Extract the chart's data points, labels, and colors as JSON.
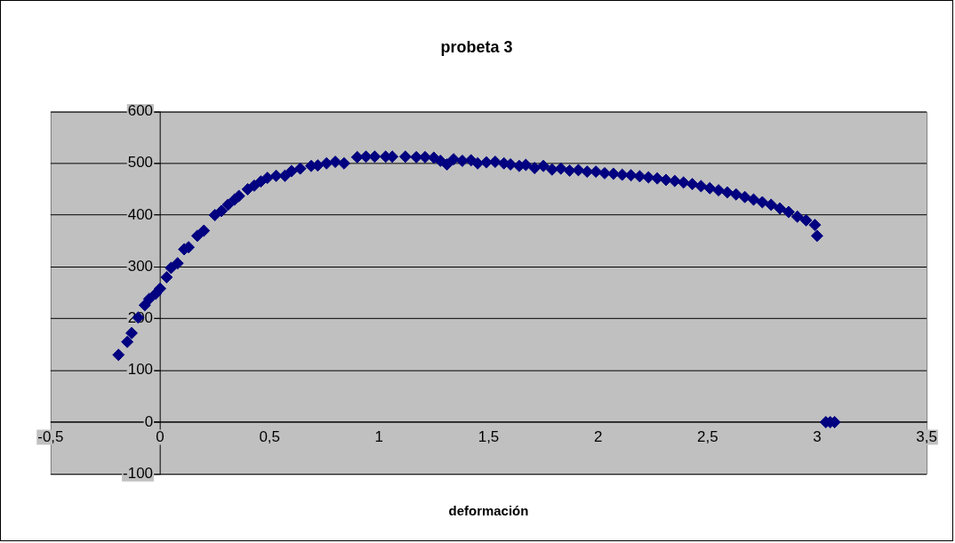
{
  "chart_data": {
    "type": "scatter",
    "title": "probeta 3",
    "xlabel": "deformación",
    "series": [
      {
        "color": "#000080",
        "x": [
          -0.19,
          -0.15,
          -0.13,
          -0.1,
          -0.07,
          -0.05,
          -0.02,
          0.0,
          0.03,
          0.05,
          0.08,
          0.11,
          0.13,
          0.17,
          0.2,
          0.25,
          0.28,
          0.31,
          0.34,
          0.36,
          0.4,
          0.43,
          0.46,
          0.49,
          0.53,
          0.57,
          0.6,
          0.64,
          0.69,
          0.72,
          0.76,
          0.8,
          0.84,
          0.9,
          0.94,
          0.98,
          1.03,
          1.06,
          1.12,
          1.17,
          1.21,
          1.25,
          1.28,
          1.31,
          1.34,
          1.38,
          1.42,
          1.45,
          1.49,
          1.53,
          1.57,
          1.6,
          1.64,
          1.67,
          1.71,
          1.75,
          1.79,
          1.83,
          1.87,
          1.91,
          1.95,
          1.99,
          2.03,
          2.07,
          2.11,
          2.15,
          2.19,
          2.23,
          2.27,
          2.31,
          2.35,
          2.39,
          2.43,
          2.47,
          2.51,
          2.55,
          2.59,
          2.63,
          2.67,
          2.71,
          2.75,
          2.79,
          2.83,
          2.87,
          2.91,
          2.95,
          2.99,
          3.0,
          3.04,
          3.06,
          3.08
        ],
        "values": [
          130,
          155,
          172,
          202,
          226,
          238,
          248,
          258,
          280,
          298,
          307,
          334,
          338,
          360,
          370,
          400,
          408,
          420,
          430,
          437,
          450,
          457,
          465,
          472,
          476,
          476,
          485,
          490,
          495,
          496,
          500,
          503,
          500,
          512,
          513,
          513,
          513,
          513,
          513,
          512,
          512,
          511,
          505,
          498,
          508,
          505,
          506,
          500,
          502,
          503,
          500,
          498,
          495,
          497,
          491,
          495,
          488,
          490,
          486,
          487,
          484,
          484,
          481,
          480,
          478,
          477,
          475,
          473,
          471,
          468,
          466,
          463,
          460,
          456,
          452,
          448,
          444,
          440,
          435,
          430,
          425,
          420,
          413,
          406,
          397,
          390,
          381,
          360,
          0,
          0,
          0
        ]
      }
    ],
    "xlim": [
      -0.5,
      3.5
    ],
    "xticks": [
      {
        "value": -0.5,
        "label": "-0,5"
      },
      0,
      {
        "value": 0.5,
        "label": "0,5"
      },
      1,
      {
        "value": 1.5,
        "label": "1,5"
      },
      2,
      {
        "value": 2.5,
        "label": "2,5"
      },
      3,
      {
        "value": 3.5,
        "label": "3,5"
      }
    ],
    "ylim": [
      -100,
      600
    ],
    "yticks": [
      -100,
      0,
      100,
      200,
      300,
      400,
      500,
      600
    ],
    "grid": "y",
    "marker": "diamond",
    "legend": false
  }
}
